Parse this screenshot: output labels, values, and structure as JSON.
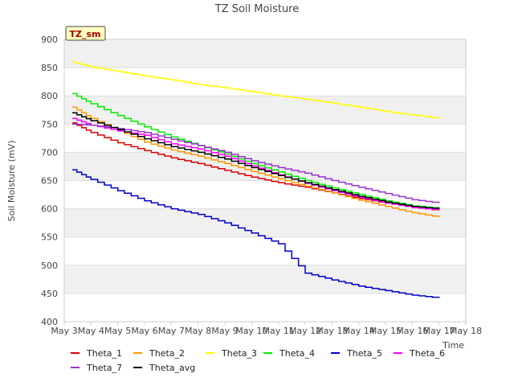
{
  "chart_data": {
    "type": "line",
    "title": "TZ Soil Moisture",
    "badge": "TZ_sm",
    "xlabel": "Time",
    "ylabel": "Soil Moisture (mV)",
    "xlim": [
      3,
      18
    ],
    "ylim": [
      400,
      900
    ],
    "yticks": [
      400,
      450,
      500,
      550,
      600,
      650,
      700,
      750,
      800,
      850,
      900
    ],
    "xticks": [
      3,
      4,
      5,
      6,
      7,
      8,
      9,
      10,
      11,
      12,
      13,
      14,
      15,
      16,
      17,
      18
    ],
    "xtick_labels": [
      "May 3",
      "May 4",
      "May 5",
      "May 6",
      "May 7",
      "May 8",
      "May 9",
      "May 10",
      "May 11",
      "May 12",
      "May 13",
      "May 14",
      "May 15",
      "May 16",
      "May 17",
      "May 18"
    ],
    "x": [
      3.3,
      4,
      5,
      6,
      7,
      8,
      9,
      10,
      11,
      12,
      13,
      14,
      15,
      16,
      17
    ],
    "series": [
      {
        "name": "Theta_1",
        "color": "#dd0000",
        "values": [
          752,
          735,
          717,
          703,
          690,
          680,
          668,
          656,
          646,
          638,
          628,
          618,
          610,
          603,
          597
        ]
      },
      {
        "name": "Theta_2",
        "color": "#ff9900",
        "values": [
          780,
          760,
          738,
          718,
          704,
          693,
          680,
          666,
          653,
          640,
          628,
          615,
          604,
          593,
          585
        ]
      },
      {
        "name": "Theta_3",
        "color": "#ffff00",
        "values": [
          860,
          851,
          843,
          835,
          828,
          820,
          814,
          807,
          800,
          794,
          787,
          780,
          772,
          766,
          760
        ]
      },
      {
        "name": "Theta_4",
        "color": "#00ee00",
        "values": [
          804,
          786,
          765,
          745,
          727,
          712,
          697,
          680,
          665,
          650,
          637,
          625,
          614,
          605,
          601
        ]
      },
      {
        "name": "Theta_5",
        "color": "#0000cc",
        "values": [
          669,
          652,
          632,
          614,
          600,
          590,
          575,
          557,
          538,
          486,
          474,
          463,
          455,
          447,
          442
        ]
      },
      {
        "name": "Theta_6",
        "color": "#ff00ff",
        "values": [
          760,
          748,
          738,
          730,
          715,
          706,
          693,
          676,
          660,
          645,
          632,
          620,
          610,
          602,
          598
        ]
      },
      {
        "name": "Theta_7",
        "color": "#9933cc",
        "values": [
          750,
          748,
          742,
          735,
          723,
          712,
          700,
          685,
          673,
          663,
          650,
          638,
          627,
          616,
          610
        ]
      },
      {
        "name": "Theta_avg",
        "color": "#000000",
        "values": [
          770,
          756,
          740,
          724,
          710,
          700,
          688,
          673,
          659,
          646,
          634,
          622,
          612,
          604,
          600
        ]
      }
    ]
  }
}
